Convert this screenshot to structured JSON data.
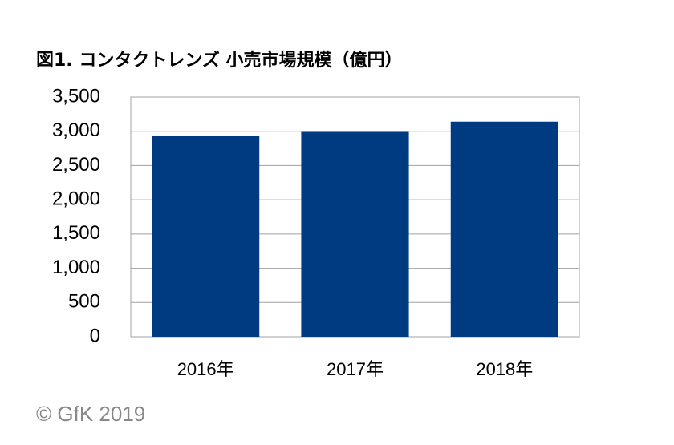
{
  "chart_data": {
    "type": "bar",
    "title": "図1. コンタクトレンズ 小売市場規模（億円）",
    "categories": [
      "2016年",
      "2017年",
      "2018年"
    ],
    "values": [
      2930,
      2990,
      3140
    ],
    "color": "#003a80",
    "ylim": [
      0,
      3500
    ],
    "yticks": [
      0,
      500,
      {
        "value": 1000,
        "label": "1,000"
      },
      {
        "value": 1500,
        "label": "1,500"
      },
      {
        "value": 2000,
        "label": "2,000"
      },
      {
        "value": 2500,
        "label": "2,500"
      },
      {
        "value": 3000,
        "label": "3,000"
      },
      {
        "value": 3500,
        "label": "3,500"
      }
    ],
    "grid": true,
    "source": "© GfK 2019"
  }
}
